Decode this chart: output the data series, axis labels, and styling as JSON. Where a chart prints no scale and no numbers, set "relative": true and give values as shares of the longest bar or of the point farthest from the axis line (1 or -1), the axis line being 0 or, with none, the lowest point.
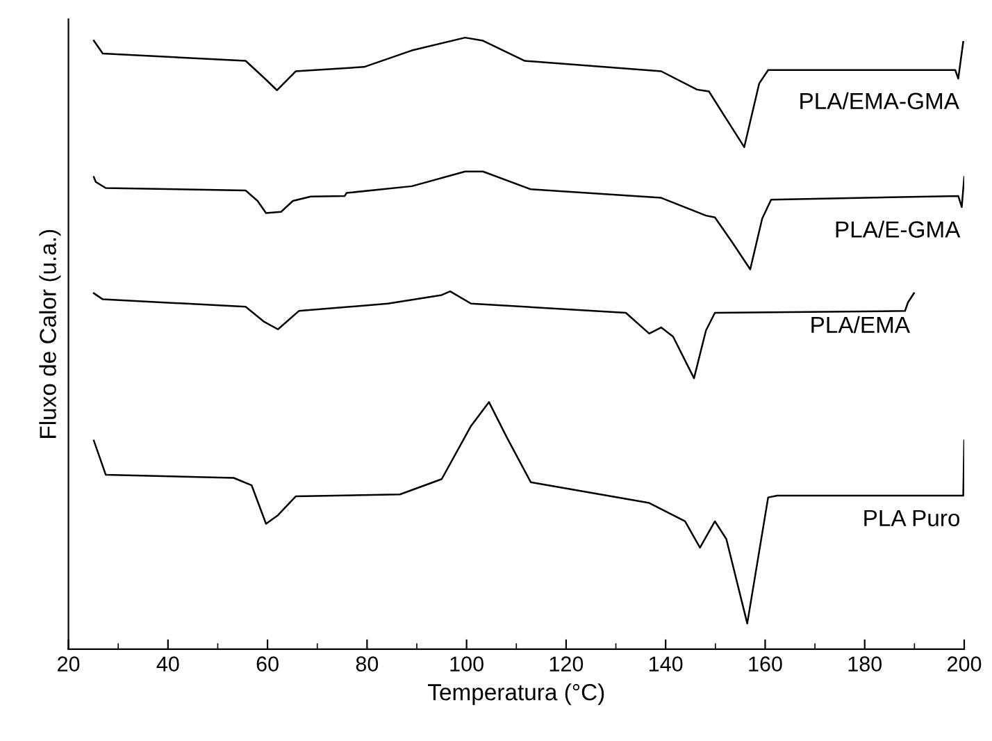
{
  "chart_data": {
    "type": "line",
    "xlabel": "Temperatura (°C)",
    "ylabel": "Fluxo de Calor (u.a.)",
    "relative": true,
    "xlim": [
      20,
      200
    ],
    "xticks": [
      20,
      40,
      60,
      80,
      100,
      120,
      140,
      160,
      180,
      200
    ],
    "grid": false,
    "legend": false,
    "marker": "none",
    "line_style": "solid",
    "series": [
      {
        "name": "PLA/EMA-GMA",
        "color": "#000000",
        "x": [
          25.1,
          26.9,
          55.6,
          59.2,
          61.9,
          65.7,
          79.4,
          89.0,
          99.7,
          103.3,
          111.7,
          139.1,
          146.3,
          148.7,
          152.2,
          155.8,
          158.8,
          160.6,
          198.2,
          198.8,
          199.8
        ],
        "values": [
          0.995,
          0.974,
          0.962,
          0.935,
          0.914,
          0.945,
          0.952,
          0.979,
          1.0,
          0.995,
          0.962,
          0.945,
          0.915,
          0.912,
          0.867,
          0.821,
          0.925,
          0.947,
          0.947,
          0.933,
          0.993
        ]
      },
      {
        "name": "PLA/E-GMA",
        "color": "#000000",
        "x": [
          25.1,
          25.5,
          27.5,
          55.6,
          58.0,
          59.7,
          62.7,
          65.1,
          68.7,
          75.5,
          75.9,
          89.0,
          99.7,
          103.3,
          112.9,
          139.1,
          148.1,
          149.9,
          153.4,
          157.0,
          159.4,
          161.2,
          198.8,
          199.5,
          200.0
        ],
        "values": [
          0.772,
          0.764,
          0.754,
          0.75,
          0.733,
          0.713,
          0.715,
          0.733,
          0.74,
          0.741,
          0.746,
          0.757,
          0.781,
          0.781,
          0.752,
          0.738,
          0.709,
          0.706,
          0.665,
          0.621,
          0.704,
          0.735,
          0.741,
          0.723,
          0.772
        ]
      },
      {
        "name": "PLA/EMA",
        "color": "#000000",
        "x": [
          25.1,
          26.9,
          55.6,
          59.2,
          62.1,
          66.3,
          84.2,
          95.0,
          96.7,
          100.9,
          132.0,
          136.7,
          139.1,
          141.5,
          145.7,
          148.1,
          149.9,
          188.1,
          188.7,
          189.9
        ],
        "values": [
          0.582,
          0.572,
          0.56,
          0.536,
          0.523,
          0.553,
          0.565,
          0.579,
          0.585,
          0.565,
          0.55,
          0.516,
          0.526,
          0.511,
          0.443,
          0.521,
          0.55,
          0.553,
          0.567,
          0.582
        ]
      },
      {
        "name": "PLA Puro",
        "color": "#000000",
        "x": [
          25.1,
          27.5,
          53.2,
          56.8,
          59.7,
          62.1,
          65.7,
          86.6,
          95.0,
          100.9,
          104.5,
          108.1,
          112.9,
          136.7,
          143.9,
          146.9,
          149.9,
          152.2,
          156.4,
          160.6,
          162.4,
          199.8,
          200.0
        ],
        "values": [
          0.341,
          0.285,
          0.28,
          0.268,
          0.205,
          0.219,
          0.25,
          0.253,
          0.278,
          0.365,
          0.404,
          0.346,
          0.273,
          0.239,
          0.209,
          0.166,
          0.209,
          0.18,
          0.042,
          0.248,
          0.251,
          0.251,
          0.341
        ]
      }
    ]
  }
}
